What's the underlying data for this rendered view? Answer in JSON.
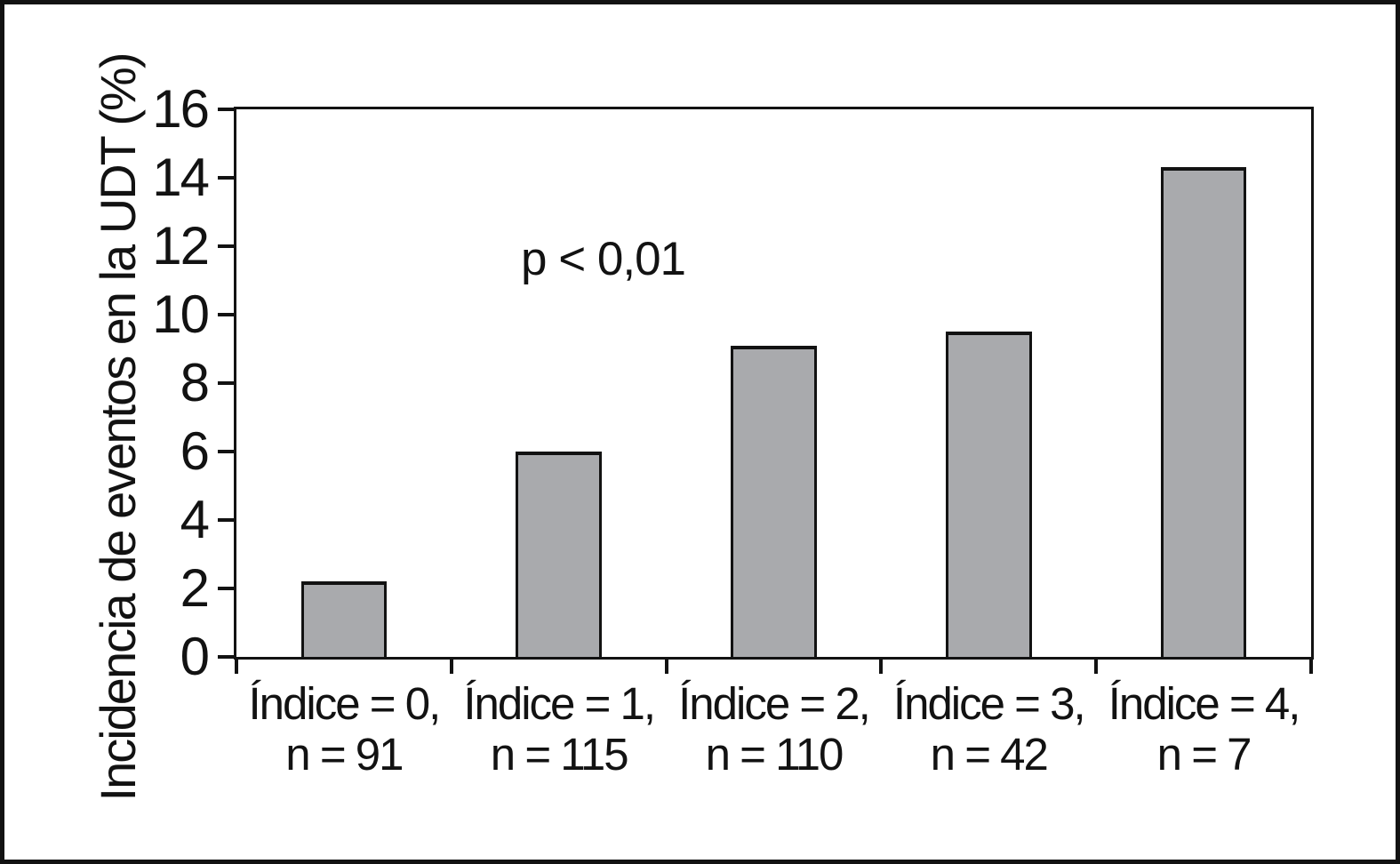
{
  "figure": {
    "background": "#ffffff",
    "frame_color": "#121212"
  },
  "chart_data": {
    "type": "bar",
    "title": "",
    "xlabel": "",
    "ylabel": "Incidencia de eventos en la UDT (%)",
    "ylim": [
      0,
      16
    ],
    "yticks": [
      0,
      2,
      4,
      6,
      8,
      10,
      12,
      14,
      16
    ],
    "grid": false,
    "legend": false,
    "annotation": "p < 0,01",
    "bar_color": "#a9aaad",
    "bar_border_color": "#121212",
    "categories": [
      "Índice = 0,\nn = 91",
      "Índice = 1,\nn = 115",
      "Índice = 2,\nn = 110",
      "Índice = 3,\nn = 42",
      "Índice = 4,\nn = 7"
    ],
    "values": [
      2.2,
      6.0,
      9.1,
      9.5,
      14.3
    ]
  }
}
